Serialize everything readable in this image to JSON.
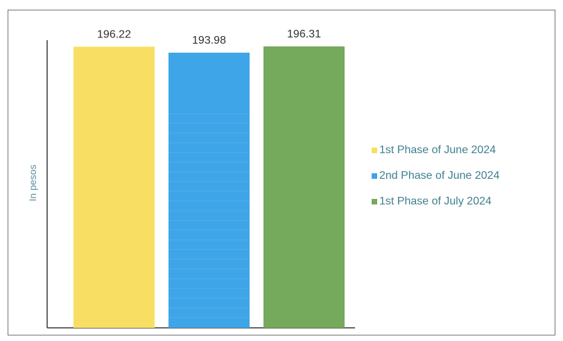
{
  "chart_data": {
    "type": "bar",
    "categories": [
      "1st Phase of June 2024",
      "2nd Phase of June 2024",
      "1st Phase of July 2024"
    ],
    "values": [
      196.22,
      193.98,
      196.31
    ],
    "value_labels": [
      "196.22",
      "193.98",
      "196.31"
    ],
    "colors": [
      "#f8df63",
      "#3ea5e8",
      "#75a95c"
    ],
    "ylabel": "In pesos",
    "legend": {
      "placement": "right",
      "entries": [
        "1st Phase of June 2024",
        "2nd Phase of June 2024",
        "1st Phase of July 2024"
      ]
    },
    "grid": false
  }
}
